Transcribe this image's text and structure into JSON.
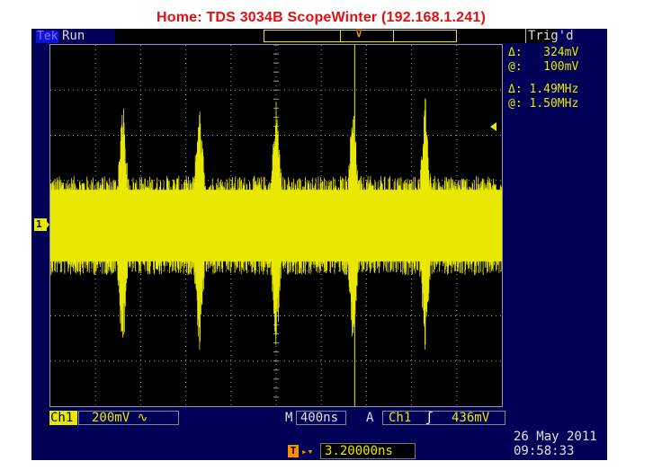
{
  "header": {
    "title": "Home:  TDS 3034B  ScopeWinter  (192.168.1.241)"
  },
  "status": {
    "brand": "Tek",
    "acq_state": "Run",
    "trigger_state": "Trig'd"
  },
  "cursors": {
    "delta_v_label": "Δ:",
    "delta_v": "324mV",
    "at_v_label": "@:",
    "at_v": "100mV",
    "delta_f_label": "Δ:",
    "delta_f": "1.49MHz",
    "at_f_label": "@:",
    "at_f": "1.50MHz"
  },
  "channel": {
    "label": "Ch1",
    "marker": "1",
    "scale": "200mV",
    "coupling_icon": "∿"
  },
  "horizontal": {
    "prefix": "M",
    "scale": "400ns"
  },
  "trigger": {
    "prefix": "A",
    "source": "Ch1",
    "slope_icon": "ʃ",
    "level": "436mV",
    "marker": "T"
  },
  "position": {
    "marker": "T",
    "arrow": "▸▾",
    "value": "3.20000ns"
  },
  "timestamp": {
    "date": "26 May 2011",
    "time": "09:58:33"
  },
  "colors": {
    "waveform": "#e8e800",
    "graticule": "#9a9a9a",
    "screen_bg": "#000057",
    "trigger": "#ff8c00",
    "title": "#e01010"
  },
  "waveform_desc": {
    "noise_band_divisions": 2.2,
    "spike_times_divisions": [
      1.6,
      3.3,
      5.0,
      6.7,
      8.3
    ],
    "trigger_time_division": 5.0
  }
}
